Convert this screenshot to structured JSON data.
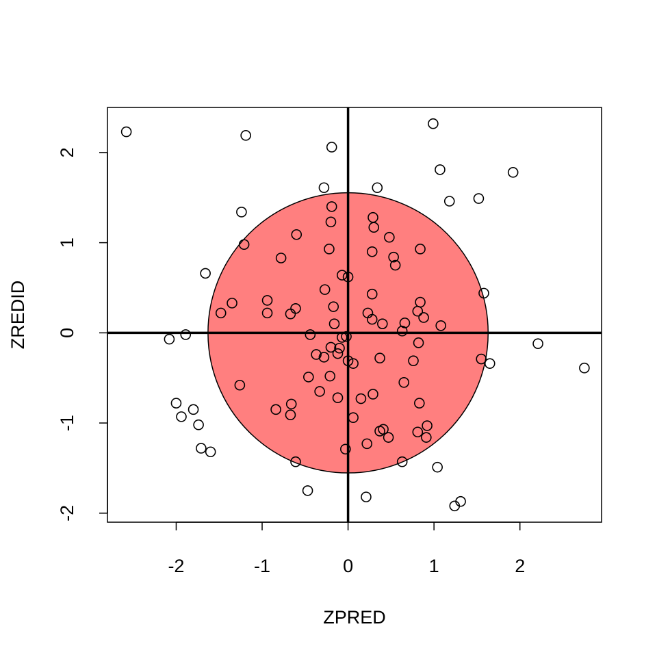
{
  "chart_data": {
    "type": "scatter",
    "title": "",
    "xlabel": "ZPRED",
    "ylabel": "ZREDID",
    "xlim": [
      -2.8,
      2.95
    ],
    "ylim": [
      -2.1,
      2.5
    ],
    "x_ticks": [
      -2,
      -1,
      0,
      1,
      2
    ],
    "y_ticks": [
      -2,
      -1,
      0,
      1,
      2
    ],
    "x_tick_labels": [
      "-2",
      "-1",
      "0",
      "1",
      "2"
    ],
    "y_tick_labels": [
      "-2",
      "-1",
      "0",
      "1",
      "2"
    ],
    "reference_lines": {
      "x": 0,
      "y": 0
    },
    "circle": {
      "center": [
        0,
        0
      ],
      "radius": 1.63,
      "fill": "#ff0000",
      "fill_opacity": 0.5
    },
    "grid": false,
    "legend": "none",
    "series": [
      {
        "points": [
          [
            -2.58,
            2.23
          ],
          [
            -1.19,
            2.19
          ],
          [
            -0.19,
            2.06
          ],
          [
            0.99,
            2.32
          ],
          [
            1.07,
            1.81
          ],
          [
            1.92,
            1.78
          ],
          [
            1.18,
            1.46
          ],
          [
            1.52,
            1.49
          ],
          [
            -1.24,
            1.34
          ],
          [
            -0.28,
            1.61
          ],
          [
            0.34,
            1.61
          ],
          [
            -0.19,
            1.4
          ],
          [
            -0.2,
            1.23
          ],
          [
            0.29,
            1.28
          ],
          [
            0.3,
            1.17
          ],
          [
            -1.21,
            0.98
          ],
          [
            -0.6,
            1.09
          ],
          [
            0.48,
            1.06
          ],
          [
            -0.22,
            0.93
          ],
          [
            0.28,
            0.9
          ],
          [
            0.84,
            0.93
          ],
          [
            0.53,
            0.84
          ],
          [
            -0.78,
            0.83
          ],
          [
            0.55,
            0.75
          ],
          [
            -1.66,
            0.66
          ],
          [
            -0.07,
            0.64
          ],
          [
            0.0,
            0.62
          ],
          [
            -0.27,
            0.48
          ],
          [
            0.28,
            0.43
          ],
          [
            1.58,
            0.44
          ],
          [
            -0.94,
            0.36
          ],
          [
            -1.35,
            0.33
          ],
          [
            0.84,
            0.34
          ],
          [
            -0.61,
            0.27
          ],
          [
            -0.17,
            0.29
          ],
          [
            -0.94,
            0.22
          ],
          [
            -1.48,
            0.22
          ],
          [
            -0.67,
            0.21
          ],
          [
            0.23,
            0.22
          ],
          [
            0.81,
            0.24
          ],
          [
            0.28,
            0.15
          ],
          [
            0.88,
            0.17
          ],
          [
            -0.16,
            0.1
          ],
          [
            0.4,
            0.1
          ],
          [
            0.66,
            0.11
          ],
          [
            1.08,
            0.08
          ],
          [
            0.63,
            0.02
          ],
          [
            -0.44,
            -0.02
          ],
          [
            -0.07,
            -0.05
          ],
          [
            -0.02,
            -0.04
          ],
          [
            -2.08,
            -0.07
          ],
          [
            -1.89,
            -0.02
          ],
          [
            0.82,
            -0.11
          ],
          [
            2.21,
            -0.12
          ],
          [
            -0.37,
            -0.24
          ],
          [
            -0.2,
            -0.16
          ],
          [
            -0.1,
            -0.17
          ],
          [
            -0.12,
            -0.23
          ],
          [
            -0.28,
            -0.27
          ],
          [
            0.37,
            -0.28
          ],
          [
            0.0,
            -0.31
          ],
          [
            0.06,
            -0.34
          ],
          [
            0.76,
            -0.31
          ],
          [
            1.55,
            -0.29
          ],
          [
            1.65,
            -0.34
          ],
          [
            2.75,
            -0.39
          ],
          [
            -1.26,
            -0.58
          ],
          [
            -0.46,
            -0.49
          ],
          [
            -0.21,
            -0.48
          ],
          [
            0.65,
            -0.55
          ],
          [
            -0.33,
            -0.65
          ],
          [
            -0.12,
            -0.72
          ],
          [
            0.15,
            -0.73
          ],
          [
            0.29,
            -0.68
          ],
          [
            0.83,
            -0.78
          ],
          [
            -2.0,
            -0.78
          ],
          [
            -1.94,
            -0.93
          ],
          [
            -1.8,
            -0.85
          ],
          [
            -0.84,
            -0.85
          ],
          [
            -0.66,
            -0.79
          ],
          [
            -0.67,
            -0.91
          ],
          [
            0.06,
            -0.94
          ],
          [
            -1.74,
            -1.02
          ],
          [
            0.92,
            -1.03
          ],
          [
            0.37,
            -1.09
          ],
          [
            0.41,
            -1.07
          ],
          [
            0.81,
            -1.1
          ],
          [
            0.47,
            -1.16
          ],
          [
            0.91,
            -1.16
          ],
          [
            0.22,
            -1.23
          ],
          [
            -1.71,
            -1.28
          ],
          [
            -1.6,
            -1.32
          ],
          [
            -0.03,
            -1.29
          ],
          [
            -0.61,
            -1.43
          ],
          [
            0.63,
            -1.43
          ],
          [
            1.04,
            -1.49
          ],
          [
            -0.47,
            -1.75
          ],
          [
            0.21,
            -1.82
          ],
          [
            1.24,
            -1.92
          ],
          [
            1.31,
            -1.87
          ]
        ]
      }
    ]
  }
}
